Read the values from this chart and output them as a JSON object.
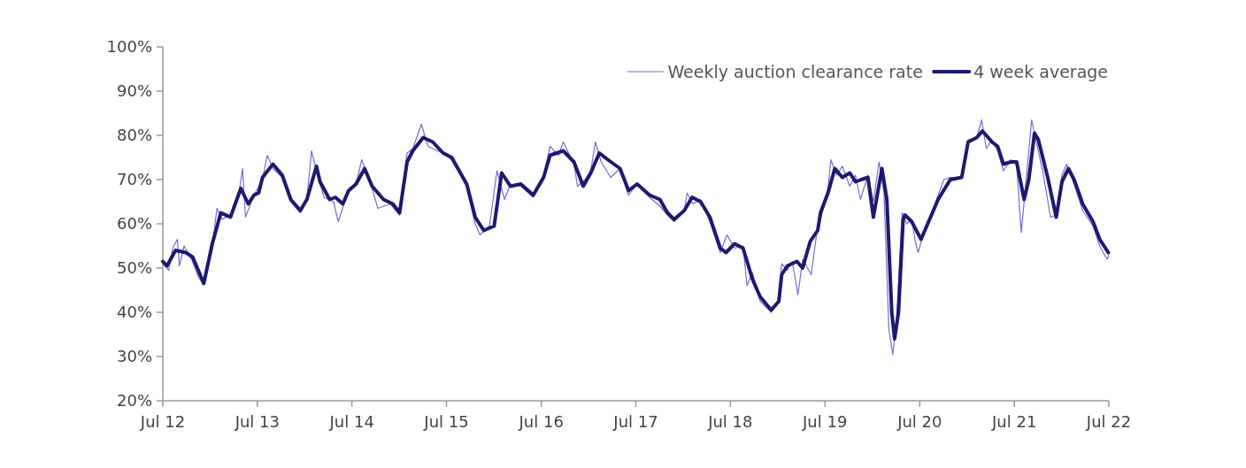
{
  "chart_data": {
    "type": "line",
    "legend": "top right",
    "grid": false,
    "marker": "none",
    "line_style": "solid",
    "xlim": [
      "2012-07-01",
      "2022-07-01"
    ],
    "xticks": [
      {
        "value": "2012-07-01",
        "label": "Jul 12"
      },
      {
        "value": "2013-07-01",
        "label": "Jul 13"
      },
      {
        "value": "2014-07-01",
        "label": "Jul 14"
      },
      {
        "value": "2015-07-01",
        "label": "Jul 15"
      },
      {
        "value": "2016-07-01",
        "label": "Jul 16"
      },
      {
        "value": "2017-07-01",
        "label": "Jul 17"
      },
      {
        "value": "2018-07-01",
        "label": "Jul 18"
      },
      {
        "value": "2019-07-01",
        "label": "Jul 19"
      },
      {
        "value": "2020-07-01",
        "label": "Jul 20"
      },
      {
        "value": "2021-07-01",
        "label": "Jul 21"
      },
      {
        "value": "2022-07-01",
        "label": "Jul 22"
      }
    ],
    "ylim": [
      20,
      100
    ],
    "yticks": [
      {
        "value": 20,
        "label": "20%"
      },
      {
        "value": 30,
        "label": "30%"
      },
      {
        "value": 40,
        "label": "40%"
      },
      {
        "value": 50,
        "label": "50%"
      },
      {
        "value": 60,
        "label": "60%"
      },
      {
        "value": 70,
        "label": "70%"
      },
      {
        "value": 80,
        "label": "80%"
      },
      {
        "value": 90,
        "label": "90%"
      },
      {
        "value": 100,
        "label": "100%"
      }
    ],
    "series": [
      {
        "name": "Weekly auction clearance rate",
        "color": "#7b68d8",
        "x": [
          "2012-07-01",
          "2012-07-24",
          "2012-08-08",
          "2012-08-26",
          "2012-09-03",
          "2012-09-21",
          "2012-10-20",
          "2012-11-15",
          "2012-12-03",
          "2013-01-08",
          "2013-01-26",
          "2013-02-14",
          "2013-03-19",
          "2013-04-21",
          "2013-05-05",
          "2013-05-16",
          "2013-06-18",
          "2013-07-21",
          "2013-08-08",
          "2013-08-30",
          "2013-10-05",
          "2013-11-07",
          "2013-12-14",
          "2014-01-08",
          "2014-01-26",
          "2014-02-14",
          "2014-03-15",
          "2014-04-21",
          "2014-05-09",
          "2014-06-18",
          "2014-07-17",
          "2014-08-08",
          "2014-09-17",
          "2014-10-09",
          "2014-11-26",
          "2015-01-01",
          "2015-01-30",
          "2015-02-21",
          "2015-03-26",
          "2015-04-21",
          "2015-05-27",
          "2015-06-18",
          "2015-07-21",
          "2015-09-17",
          "2015-10-20",
          "2015-11-07",
          "2015-12-14",
          "2016-01-12",
          "2016-02-10",
          "2016-03-04",
          "2016-04-13",
          "2016-05-31",
          "2016-07-10",
          "2016-08-04",
          "2016-09-06",
          "2016-09-24",
          "2016-11-04",
          "2016-11-18",
          "2016-12-17",
          "2017-01-08",
          "2017-01-26",
          "2017-02-17",
          "2017-03-26",
          "2017-05-01",
          "2017-06-03",
          "2017-07-06",
          "2017-08-23",
          "2017-10-02",
          "2017-10-31",
          "2017-11-26",
          "2018-01-04",
          "2018-01-15",
          "2018-02-06",
          "2018-03-08",
          "2018-04-13",
          "2018-05-23",
          "2018-06-18",
          "2018-07-17",
          "2018-08-19",
          "2018-09-03",
          "2018-09-24",
          "2018-10-24",
          "2018-12-06",
          "2019-01-04",
          "2019-01-15",
          "2019-02-06",
          "2019-02-25",
          "2019-03-19",
          "2019-04-06",
          "2019-05-09",
          "2019-06-03",
          "2019-06-14",
          "2019-07-13",
          "2019-07-24",
          "2019-08-15",
          "2019-09-06",
          "2019-10-05",
          "2019-10-27",
          "2019-11-15",
          "2019-12-14",
          "2020-01-04",
          "2020-01-26",
          "2020-02-14",
          "2020-03-04",
          "2020-03-19",
          "2020-04-02",
          "2020-04-24",
          "2020-05-12",
          "2020-05-31",
          "2020-06-14",
          "2020-06-25",
          "2020-07-21",
          "2020-08-15",
          "2020-09-10",
          "2020-10-02",
          "2020-10-27",
          "2020-12-10",
          "2021-01-04",
          "2021-02-06",
          "2021-02-25",
          "2021-03-15",
          "2021-04-06",
          "2021-04-28",
          "2021-05-20",
          "2021-06-18",
          "2021-07-10",
          "2021-07-28",
          "2021-08-19",
          "2021-09-06",
          "2021-09-24",
          "2021-10-20",
          "2021-11-18",
          "2021-12-10",
          "2022-01-01",
          "2022-01-19",
          "2022-02-17",
          "2022-03-22",
          "2022-05-01",
          "2022-05-27",
          "2022-06-14",
          "2022-06-25",
          "2022-07-01"
        ],
        "values": [
          51,
          49.5,
          54.5,
          56.5,
          50.5,
          55,
          52,
          48,
          46.5,
          55,
          63.5,
          61,
          62,
          67,
          72.5,
          61.5,
          66.5,
          70,
          75.5,
          72.5,
          70.5,
          65,
          62.5,
          65.5,
          76.5,
          72,
          66,
          65,
          60.5,
          67.5,
          69,
          74.5,
          68,
          63.5,
          64.5,
          62,
          76,
          77,
          82.5,
          77.5,
          76.5,
          76,
          74.5,
          68.5,
          60,
          57.5,
          59.5,
          72,
          65.5,
          69,
          68.5,
          66,
          71,
          77.5,
          75.5,
          78.5,
          73.5,
          68.5,
          70,
          72,
          78.5,
          74,
          70.5,
          72.5,
          66.5,
          69,
          66,
          64,
          62,
          60.5,
          63,
          67,
          64.5,
          65.5,
          60.5,
          53.5,
          57.5,
          54.5,
          55,
          46,
          49,
          42.5,
          40,
          43,
          51,
          49.5,
          51.5,
          44,
          52,
          48.5,
          59.5,
          61,
          68,
          74.5,
          71,
          73,
          68.5,
          71,
          65.5,
          71,
          65,
          74,
          67,
          36,
          30.5,
          38,
          62.5,
          60,
          61,
          56,
          53.5,
          59,
          62,
          66.5,
          70,
          70.5,
          70.5,
          79,
          79.5,
          83.5,
          77,
          79,
          76.5,
          72,
          74.5,
          73.5,
          58,
          72,
          83.5,
          78.5,
          71.5,
          61.5,
          62,
          71,
          73.5,
          69,
          63,
          59.5,
          55,
          53,
          52,
          53
        ]
      },
      {
        "name": "4 week average",
        "color": "#1c1a6e",
        "x": [
          "2012-07-01",
          "2012-07-17",
          "2012-08-19",
          "2012-09-28",
          "2012-10-24",
          "2012-11-15",
          "2012-12-06",
          "2013-01-08",
          "2013-02-10",
          "2013-03-19",
          "2013-04-28",
          "2013-05-27",
          "2013-06-18",
          "2013-07-06",
          "2013-07-21",
          "2013-08-30",
          "2013-10-05",
          "2013-11-07",
          "2013-12-14",
          "2014-01-08",
          "2014-02-14",
          "2014-02-28",
          "2014-04-06",
          "2014-04-28",
          "2014-05-27",
          "2014-06-18",
          "2014-07-17",
          "2014-08-19",
          "2014-09-17",
          "2014-10-31",
          "2014-12-06",
          "2015-01-01",
          "2015-01-30",
          "2015-02-21",
          "2015-04-02",
          "2015-05-09",
          "2015-06-18",
          "2015-07-21",
          "2015-09-17",
          "2015-10-20",
          "2015-11-22",
          "2016-01-01",
          "2016-01-30",
          "2016-03-04",
          "2016-04-13",
          "2016-05-31",
          "2016-07-10",
          "2016-08-04",
          "2016-09-24",
          "2016-11-04",
          "2016-12-10",
          "2017-01-08",
          "2017-02-10",
          "2017-03-15",
          "2017-05-01",
          "2017-06-03",
          "2017-07-06",
          "2017-08-23",
          "2017-10-02",
          "2017-10-31",
          "2017-11-26",
          "2018-01-04",
          "2018-02-03",
          "2018-03-08",
          "2018-04-13",
          "2018-05-23",
          "2018-06-14",
          "2018-07-17",
          "2018-08-19",
          "2018-09-24",
          "2018-10-24",
          "2018-12-06",
          "2019-01-04",
          "2019-01-15",
          "2019-02-06",
          "2019-03-15",
          "2019-04-06",
          "2019-05-05",
          "2019-06-03",
          "2019-06-14",
          "2019-07-13",
          "2019-08-08",
          "2019-09-06",
          "2019-10-05",
          "2019-10-27",
          "2019-11-18",
          "2019-12-14",
          "2020-01-04",
          "2020-02-06",
          "2020-02-25",
          "2020-03-15",
          "2020-03-26",
          "2020-04-10",
          "2020-04-28",
          "2020-05-05",
          "2020-05-31",
          "2020-07-06",
          "2020-08-08",
          "2020-09-10",
          "2020-10-27",
          "2020-12-10",
          "2021-01-04",
          "2021-02-06",
          "2021-02-28",
          "2021-04-06",
          "2021-04-28",
          "2021-05-20",
          "2021-06-18",
          "2021-07-10",
          "2021-08-08",
          "2021-08-26",
          "2021-09-17",
          "2021-10-02",
          "2021-11-07",
          "2021-12-10",
          "2022-01-01",
          "2022-01-26",
          "2022-02-17",
          "2022-03-22",
          "2022-05-01",
          "2022-05-27",
          "2022-06-29"
        ],
        "values": [
          51.5,
          50.5,
          54,
          53.5,
          52.5,
          49.5,
          46.5,
          55.5,
          62.5,
          61.5,
          68,
          64.5,
          66.5,
          67,
          70.5,
          73.5,
          71,
          65.5,
          63,
          65.5,
          73,
          69.5,
          65.5,
          66,
          64.5,
          67.5,
          69,
          72.5,
          68.5,
          65.5,
          64.5,
          62.5,
          74,
          76.5,
          79.5,
          78.5,
          76,
          75,
          69,
          61.5,
          58.5,
          59.5,
          71.5,
          68.5,
          69,
          66.5,
          70.5,
          75.5,
          76.5,
          74,
          68.5,
          71.5,
          76,
          74.5,
          72.5,
          67.5,
          69,
          66.5,
          65.5,
          62.5,
          61,
          63,
          66,
          65,
          61.5,
          54.5,
          53.5,
          55.5,
          54.5,
          47.5,
          43.5,
          40.5,
          42.5,
          48.5,
          50.5,
          51.5,
          50,
          56,
          58.5,
          62.5,
          67,
          72.5,
          70.5,
          71.5,
          69.5,
          70,
          70.5,
          61.5,
          72.5,
          65.5,
          40,
          34,
          40,
          61,
          62,
          60.5,
          56.5,
          61,
          65.5,
          70,
          70.5,
          78.5,
          79.5,
          81,
          78.5,
          77.5,
          73.5,
          74,
          74,
          65.5,
          70,
          80.5,
          79,
          70.5,
          61.5,
          69.5,
          72.5,
          70,
          64.5,
          60.5,
          56.5,
          53.5
        ]
      }
    ]
  }
}
